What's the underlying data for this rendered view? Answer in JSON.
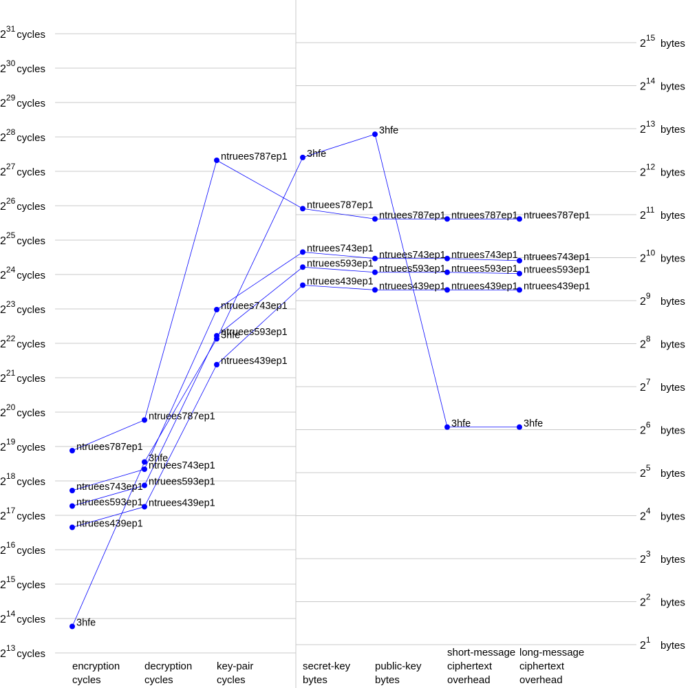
{
  "chart_data": {
    "type": "line",
    "left_axis": {
      "unit": "cycles",
      "base": "2",
      "exponents": [
        13,
        14,
        15,
        16,
        17,
        18,
        19,
        20,
        21,
        22,
        23,
        24,
        25,
        26,
        27,
        28,
        29,
        30,
        31
      ],
      "scale": "log2"
    },
    "right_axis": {
      "unit": "bytes",
      "base": "2",
      "exponents": [
        1,
        2,
        3,
        4,
        5,
        6,
        7,
        8,
        9,
        10,
        11,
        12,
        13,
        14,
        15
      ],
      "scale": "log2"
    },
    "categories": [
      {
        "lines": [
          "encryption",
          "cycles"
        ],
        "axis": "left"
      },
      {
        "lines": [
          "decryption",
          "cycles"
        ],
        "axis": "left"
      },
      {
        "lines": [
          "key-pair",
          "cycles"
        ],
        "axis": "left"
      },
      {
        "lines": [
          "secret-key",
          "bytes"
        ],
        "axis": "right"
      },
      {
        "lines": [
          "public-key",
          "bytes"
        ],
        "axis": "right"
      },
      {
        "lines": [
          "short-message",
          "ciphertext",
          "overhead"
        ],
        "axis": "right"
      },
      {
        "lines": [
          "long-message",
          "ciphertext",
          "overhead"
        ],
        "axis": "right"
      }
    ],
    "series": [
      {
        "name": "ntruees787ep1",
        "values": [
          18.88,
          19.77,
          27.32,
          11.14,
          10.9,
          10.9,
          10.9
        ]
      },
      {
        "name": "ntruees743ep1",
        "values": [
          17.72,
          18.34,
          22.98,
          10.13,
          9.98,
          9.98,
          9.93
        ]
      },
      {
        "name": "ntruees593ep1",
        "values": [
          17.27,
          17.87,
          22.22,
          9.78,
          9.66,
          9.66,
          9.63
        ]
      },
      {
        "name": "ntruees439ep1",
        "values": [
          16.65,
          17.25,
          21.38,
          9.36,
          9.25,
          9.25,
          9.25
        ]
      },
      {
        "name": "3hfe",
        "values": [
          13.77,
          18.55,
          22.13,
          12.33,
          12.87,
          6.06,
          6.06
        ]
      }
    ]
  }
}
